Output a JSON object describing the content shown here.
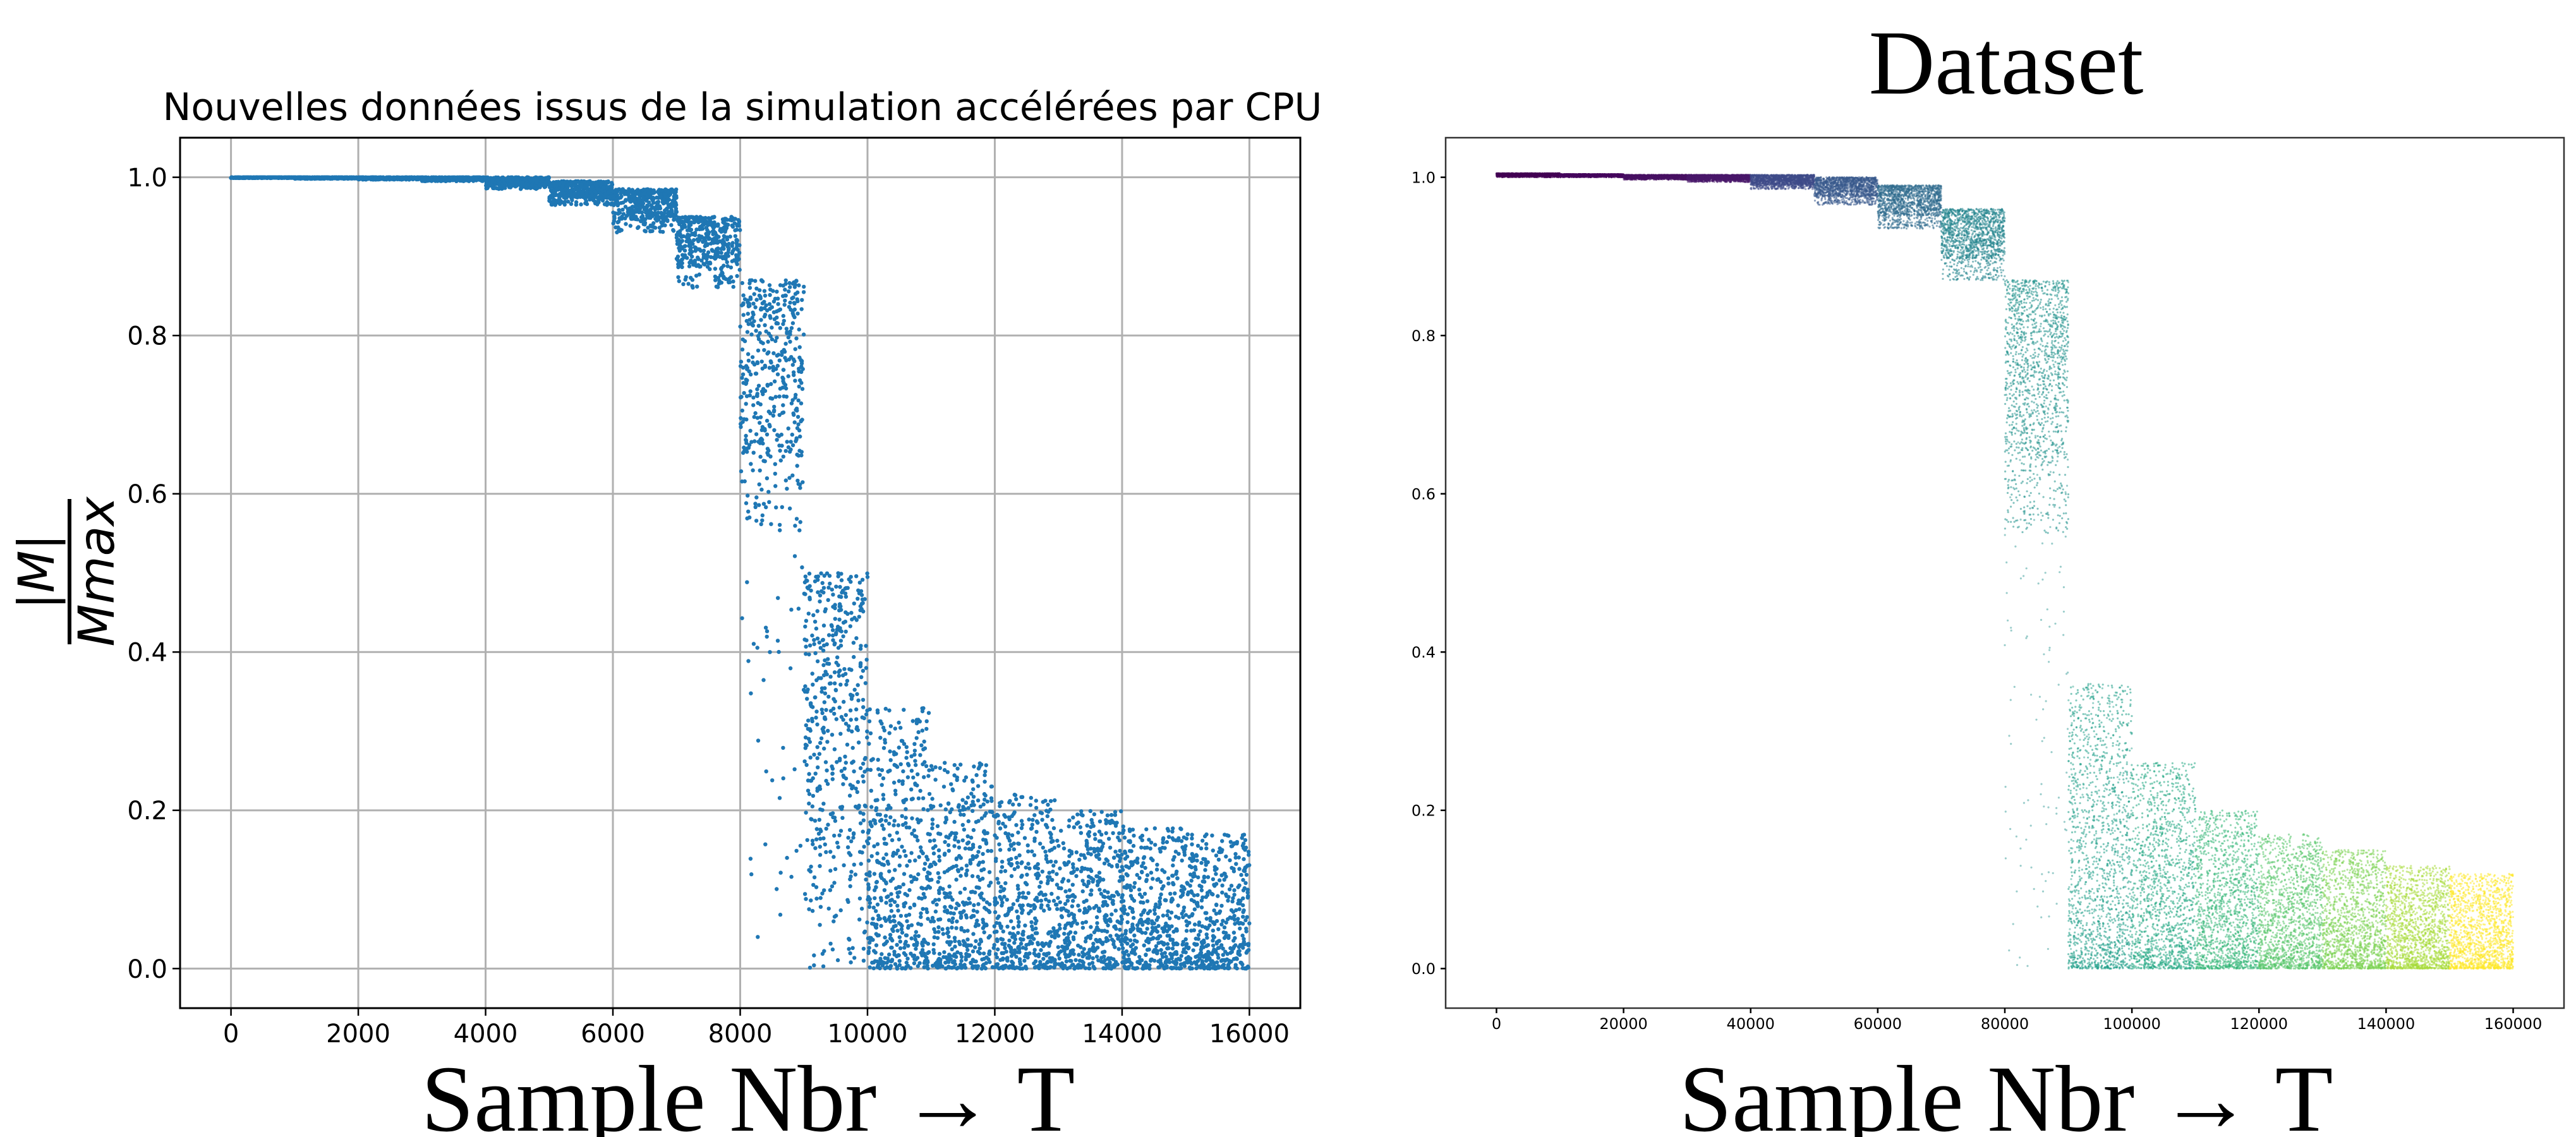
{
  "chart_data": [
    {
      "type": "scatter",
      "title": "Nouvelles données issus de la simulation accélérées par CPU",
      "xlabel": "Sample Nbr → T",
      "ylabel_numerator": "|M|",
      "ylabel_denominator": "Mmax",
      "xlim": [
        -800,
        16800
      ],
      "ylim": [
        -0.05,
        1.05
      ],
      "xticks": [
        0,
        2000,
        4000,
        6000,
        8000,
        10000,
        12000,
        14000,
        16000
      ],
      "yticks": [
        0.0,
        0.2,
        0.4,
        0.6,
        0.8,
        1.0
      ],
      "xtick_labels": [
        "0",
        "2000",
        "4000",
        "6000",
        "8000",
        "10000",
        "12000",
        "14000",
        "16000"
      ],
      "ytick_labels": [
        "0.0",
        "0.2",
        "0.4",
        "0.6",
        "0.8",
        "1.0"
      ],
      "grid": true,
      "color": "#1f77b4",
      "bins": [
        {
          "x": [
            0,
            1000
          ],
          "y": [
            0.999,
            1.0
          ]
        },
        {
          "x": [
            1000,
            2000
          ],
          "y": [
            0.998,
            1.0
          ]
        },
        {
          "x": [
            2000,
            3000
          ],
          "y": [
            0.997,
            1.0
          ]
        },
        {
          "x": [
            3000,
            4000
          ],
          "y": [
            0.995,
            1.0
          ]
        },
        {
          "x": [
            4000,
            5000
          ],
          "y": [
            0.985,
            1.0
          ]
        },
        {
          "x": [
            5000,
            6000
          ],
          "y": [
            0.965,
            0.995
          ]
        },
        {
          "x": [
            6000,
            7000
          ],
          "y": [
            0.93,
            0.985
          ]
        },
        {
          "x": [
            7000,
            8000
          ],
          "y": [
            0.86,
            0.95
          ]
        },
        {
          "x": [
            8000,
            9000
          ],
          "y": [
            0.55,
            0.87
          ]
        },
        {
          "x": [
            9000,
            10000
          ],
          "y": [
            0.0,
            0.5
          ]
        },
        {
          "x": [
            10000,
            11000
          ],
          "y": [
            0.0,
            0.33
          ]
        },
        {
          "x": [
            11000,
            12000
          ],
          "y": [
            0.0,
            0.26
          ]
        },
        {
          "x": [
            12000,
            13000
          ],
          "y": [
            0.0,
            0.22
          ]
        },
        {
          "x": [
            13000,
            14000
          ],
          "y": [
            0.0,
            0.2
          ]
        },
        {
          "x": [
            14000,
            15000
          ],
          "y": [
            0.0,
            0.18
          ]
        },
        {
          "x": [
            15000,
            16000
          ],
          "y": [
            0.0,
            0.17
          ]
        }
      ]
    },
    {
      "type": "scatter",
      "title": "Dataset",
      "xlabel": "Sample Nbr → T",
      "xlim": [
        -8000,
        168000
      ],
      "ylim": [
        -0.05,
        1.05
      ],
      "xticks": [
        0,
        20000,
        40000,
        60000,
        80000,
        100000,
        120000,
        140000,
        160000
      ],
      "yticks": [
        0.0,
        0.2,
        0.4,
        0.6,
        0.8,
        1.0
      ],
      "xtick_labels": [
        "0",
        "20000",
        "40000",
        "60000",
        "80000",
        "100000",
        "120000",
        "140000",
        "160000"
      ],
      "ytick_labels": [
        "0.0",
        "0.2",
        "0.4",
        "0.6",
        "0.8",
        "1.0"
      ],
      "grid": false,
      "colormap": "viridis",
      "bins": [
        {
          "x": [
            0,
            10000
          ],
          "y": [
            1.0,
            1.005
          ],
          "color": "#440154"
        },
        {
          "x": [
            10000,
            20000
          ],
          "y": [
            1.0,
            1.004
          ],
          "color": "#46085c"
        },
        {
          "x": [
            20000,
            30000
          ],
          "y": [
            0.997,
            1.003
          ],
          "color": "#471063"
        },
        {
          "x": [
            30000,
            40000
          ],
          "y": [
            0.994,
            1.003
          ],
          "color": "#481769"
        },
        {
          "x": [
            40000,
            50000
          ],
          "y": [
            0.985,
            1.003
          ],
          "color": "#3e4a89"
        },
        {
          "x": [
            50000,
            60000
          ],
          "y": [
            0.965,
            1.0
          ],
          "color": "#38598c"
        },
        {
          "x": [
            60000,
            70000
          ],
          "y": [
            0.935,
            0.99
          ],
          "color": "#2f6b8e"
        },
        {
          "x": [
            70000,
            80000
          ],
          "y": [
            0.87,
            0.96
          ],
          "color": "#25858e"
        },
        {
          "x": [
            80000,
            90000
          ],
          "y": [
            0.55,
            0.87
          ],
          "color": "#21918c"
        },
        {
          "x": [
            90000,
            100000
          ],
          "y": [
            0.0,
            0.36
          ],
          "color": "#1f9e89"
        },
        {
          "x": [
            100000,
            110000
          ],
          "y": [
            0.0,
            0.26
          ],
          "color": "#22a884"
        },
        {
          "x": [
            110000,
            120000
          ],
          "y": [
            0.0,
            0.2
          ],
          "color": "#35b779"
        },
        {
          "x": [
            120000,
            130000
          ],
          "y": [
            0.0,
            0.17
          ],
          "color": "#54c568"
        },
        {
          "x": [
            130000,
            140000
          ],
          "y": [
            0.0,
            0.15
          ],
          "color": "#7ad151"
        },
        {
          "x": [
            140000,
            150000
          ],
          "y": [
            0.0,
            0.13
          ],
          "color": "#a5db36"
        },
        {
          "x": [
            150000,
            160000
          ],
          "y": [
            0.0,
            0.12
          ],
          "color": "#fde725"
        }
      ]
    }
  ]
}
